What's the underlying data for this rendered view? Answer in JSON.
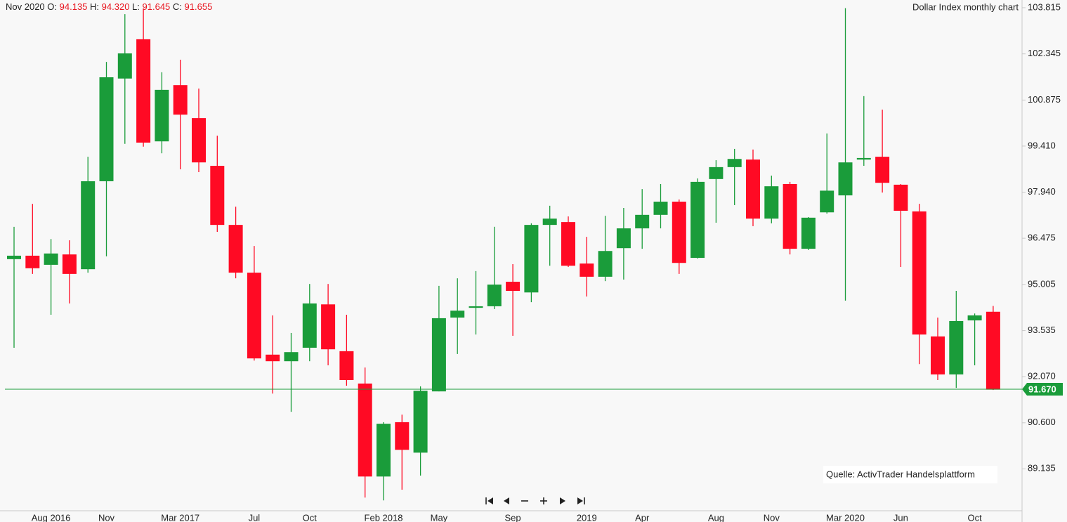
{
  "chart_data": {
    "type": "candlestick",
    "title": "Dollar Index monthly chart",
    "header": {
      "period": "Nov 2020",
      "open_label": "O:",
      "high_label": "H:",
      "low_label": "L:",
      "close_label": "C:",
      "open": "94.135",
      "high": "94.320",
      "low": "91.645",
      "close": "91.655"
    },
    "annotation": "Quelle: ActivTrader Handelsplattform",
    "categories": [
      null,
      null,
      "Aug 2016",
      null,
      null,
      "Nov",
      null,
      null,
      null,
      "Mar 2017",
      null,
      null,
      null,
      "Jul",
      null,
      null,
      "Oct",
      null,
      null,
      null,
      "Feb 2018",
      null,
      null,
      "May",
      null,
      null,
      null,
      "Sep",
      null,
      null,
      null,
      "2019",
      null,
      null,
      "Apr",
      null,
      null,
      null,
      "Aug",
      null,
      null,
      "Nov",
      null,
      null,
      null,
      "Mar 2020",
      null,
      null,
      "Jun",
      null,
      null,
      null,
      "Oct",
      null
    ],
    "open": [
      95.81,
      95.92,
      95.63,
      95.96,
      95.49,
      98.29,
      101.56,
      102.81,
      99.56,
      101.35,
      100.3,
      98.78,
      96.9,
      95.38,
      92.77,
      92.56,
      92.99,
      94.37,
      92.88,
      91.85,
      88.89,
      90.62,
      89.65,
      91.6,
      93.95,
      94.26,
      94.31,
      95.09,
      94.75,
      96.9,
      96.99,
      95.67,
      95.25,
      96.16,
      96.79,
      97.22,
      97.64,
      95.85,
      98.36,
      98.74,
      98.98,
      97.1,
      98.2,
      96.14,
      97.3,
      97.84,
      98.98,
      99.07,
      98.18,
      97.33,
      93.35,
      92.14,
      93.86,
      94.135
    ],
    "high": [
      96.84,
      97.57,
      96.45,
      96.41,
      99.07,
      102.09,
      103.61,
      103.79,
      101.76,
      102.16,
      101.24,
      99.74,
      97.48,
      96.23,
      94.02,
      93.46,
      95.02,
      95.02,
      94.04,
      92.36,
      90.62,
      90.86,
      91.76,
      94.96,
      95.2,
      95.43,
      96.84,
      95.65,
      96.95,
      97.51,
      97.17,
      96.52,
      97.19,
      97.44,
      98.04,
      98.2,
      97.71,
      98.38,
      98.96,
      99.32,
      99.3,
      98.47,
      98.27,
      97.15,
      99.81,
      103.8,
      101.0,
      100.57,
      98.2,
      97.57,
      93.95,
      94.8,
      94.08,
      94.32
    ],
    "low": [
      92.99,
      95.34,
      94.04,
      94.4,
      95.38,
      95.9,
      99.48,
      99.39,
      99.18,
      98.67,
      98.58,
      96.68,
      95.2,
      92.58,
      91.53,
      90.95,
      92.56,
      92.43,
      91.78,
      88.22,
      88.13,
      88.47,
      88.92,
      91.6,
      92.79,
      93.41,
      94.22,
      93.37,
      94.44,
      95.6,
      95.56,
      94.62,
      95.11,
      95.16,
      96.14,
      96.79,
      95.34,
      95.83,
      96.97,
      97.53,
      96.86,
      96.95,
      95.96,
      96.1,
      97.26,
      94.49,
      98.78,
      97.93,
      95.56,
      92.47,
      91.96,
      91.71,
      92.43,
      91.645
    ],
    "close": [
      95.92,
      95.52,
      95.99,
      95.34,
      98.29,
      101.6,
      102.36,
      99.52,
      101.2,
      100.41,
      98.89,
      96.9,
      95.38,
      92.65,
      92.56,
      92.85,
      94.4,
      92.94,
      91.96,
      88.89,
      90.57,
      89.74,
      91.62,
      93.93,
      94.17,
      94.31,
      95.0,
      94.8,
      96.9,
      97.1,
      95.6,
      95.25,
      96.07,
      96.79,
      97.22,
      97.64,
      95.69,
      98.27,
      98.74,
      99.0,
      97.1,
      98.13,
      96.14,
      97.13,
      97.99,
      98.89,
      99.03,
      98.24,
      97.35,
      93.41,
      92.14,
      93.84,
      94.02,
      91.655
    ],
    "up_color": "#1a9c3a",
    "down_color": "#ff0a24",
    "last_price": {
      "value": 91.67,
      "label": "91.670"
    },
    "ylim": [
      87.8,
      104.06
    ],
    "yticks": [
      103.815,
      102.345,
      100.875,
      {
        "value": 99.41,
        "label": "99.410"
      },
      {
        "value": 97.94,
        "label": "97.940"
      },
      96.475,
      95.005,
      93.535,
      {
        "value": 92.07,
        "label": "92.070"
      },
      {
        "value": 90.6,
        "label": "90.600"
      },
      89.135
    ],
    "grid": false
  }
}
